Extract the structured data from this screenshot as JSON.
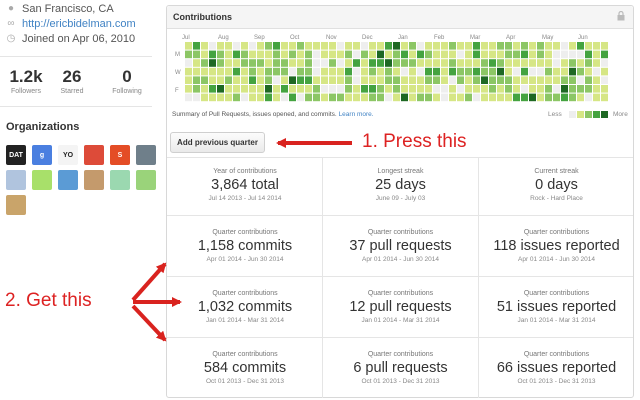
{
  "profile": {
    "location": "San Francisco, CA",
    "website": "http://ericbidelman.com",
    "joined": "Joined on Apr 06, 2010",
    "stats": [
      {
        "value": "1.2k",
        "label": "Followers"
      },
      {
        "value": "26",
        "label": "Starred"
      },
      {
        "value": "0",
        "label": "Following"
      }
    ],
    "organizations_title": "Organizations",
    "orgs": [
      {
        "text": "DAT",
        "bg": "#222222"
      },
      {
        "text": "g",
        "bg": "#4a7fe0"
      },
      {
        "text": "YO",
        "bg": "#f4f4f4"
      },
      {
        "text": "",
        "bg": "#dd4b39"
      },
      {
        "text": "S",
        "bg": "#e44d26"
      },
      {
        "text": "",
        "bg": "#6f7f8a"
      },
      {
        "text": "",
        "bg": "#b0c4de"
      },
      {
        "text": "",
        "bg": "#a8e06a"
      },
      {
        "text": "",
        "bg": "#5b9bd5"
      },
      {
        "text": "",
        "bg": "#c49a6c"
      },
      {
        "text": "",
        "bg": "#9bd8b0"
      },
      {
        "text": "",
        "bg": "#9ad37a"
      },
      {
        "text": "",
        "bg": "#c9a46a"
      }
    ]
  },
  "contributions": {
    "title": "Contributions",
    "months": [
      "Jul",
      "Aug",
      "Sep",
      "Oct",
      "Nov",
      "Dec",
      "Jan",
      "Feb",
      "Mar",
      "Apr",
      "May",
      "Jun"
    ],
    "day_labels": [
      "M",
      "W",
      "F"
    ],
    "summary_text": "Summary of Pull Requests, issues opened, and commits.",
    "learn_more": "Learn more.",
    "legend_less": "Less",
    "legend_more": "More",
    "colors": [
      "#eeeeee",
      "#d6e685",
      "#8cc665",
      "#44a340",
      "#1e6823"
    ],
    "add_button": "Add previous quarter",
    "year_stats": [
      {
        "header": "Year of contributions",
        "value": "3,864 total",
        "detail": "Jul 14 2013 - Jul 14 2014"
      },
      {
        "header": "Longest streak",
        "value": "25 days",
        "detail": "June 09 - July 03"
      },
      {
        "header": "Current streak",
        "value": "0 days",
        "detail": "Rock - Hard Place"
      }
    ],
    "quarters": [
      [
        {
          "header": "Quarter contributions",
          "value": "1,158 commits",
          "detail": "Apr 01 2014 - Jun 30 2014"
        },
        {
          "header": "Quarter contributions",
          "value": "37 pull requests",
          "detail": "Apr 01 2014 - Jun 30 2014"
        },
        {
          "header": "Quarter contributions",
          "value": "118 issues reported",
          "detail": "Apr 01 2014 - Jun 30 2014"
        }
      ],
      [
        {
          "header": "Quarter contributions",
          "value": "1,032 commits",
          "detail": "Jan 01 2014 - Mar 31 2014"
        },
        {
          "header": "Quarter contributions",
          "value": "12 pull requests",
          "detail": "Jan 01 2014 - Mar 31 2014"
        },
        {
          "header": "Quarter contributions",
          "value": "51 issues reported",
          "detail": "Jan 01 2014 - Mar 31 2014"
        }
      ],
      [
        {
          "header": "Quarter contributions",
          "value": "584 commits",
          "detail": "Oct 01 2013 - Dec 31 2013"
        },
        {
          "header": "Quarter contributions",
          "value": "6 pull requests",
          "detail": "Oct 01 2013 - Dec 31 2013"
        },
        {
          "header": "Quarter contributions",
          "value": "66 issues reported",
          "detail": "Oct 01 2013 - Dec 31 2013"
        }
      ]
    ]
  },
  "annotations": {
    "step1": "1. Press this",
    "step2": "2. Get this",
    "color": "#d9231f"
  }
}
